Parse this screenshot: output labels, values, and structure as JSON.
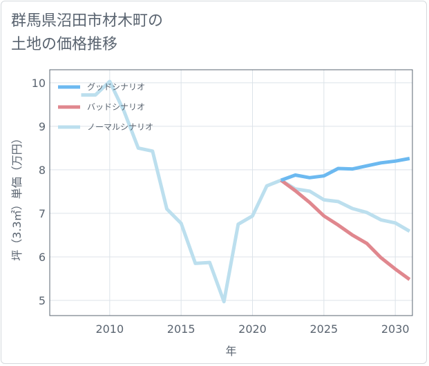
{
  "title": "群馬県沼田市材木町の\n土地の価格推移",
  "chart_data": {
    "type": "line",
    "xlabel": "年",
    "ylabel": "坪（3.3㎡）単価（万円）",
    "xlim": [
      2005.8,
      2031.2
    ],
    "ylim": [
      4.65,
      10.3
    ],
    "xticks": [
      2010,
      2015,
      2020,
      2025,
      2030
    ],
    "yticks": [
      5,
      6,
      7,
      8,
      9,
      10
    ],
    "grid": true,
    "legend_position": "top-left",
    "series": [
      {
        "name": "グッドシナリオ",
        "color": "#6cb9f0",
        "x": [
          2022,
          2023,
          2024,
          2025,
          2026,
          2027,
          2028,
          2029,
          2030,
          2031
        ],
        "y": [
          7.76,
          7.88,
          7.82,
          7.86,
          8.03,
          8.02,
          8.09,
          8.16,
          8.2,
          8.26
        ]
      },
      {
        "name": "バッドシナリオ",
        "color": "#e0878e",
        "x": [
          2022,
          2023,
          2024,
          2025,
          2026,
          2027,
          2028,
          2029,
          2030,
          2031
        ],
        "y": [
          7.76,
          7.52,
          7.25,
          6.94,
          6.73,
          6.5,
          6.31,
          5.98,
          5.72,
          5.48
        ]
      },
      {
        "name": "ノーマルシナリオ",
        "color": "#bcdfee",
        "x": [
          2008,
          2009,
          2010,
          2011,
          2012,
          2013,
          2014,
          2015,
          2016,
          2017,
          2018,
          2019,
          2020,
          2021,
          2022,
          2023,
          2024,
          2025,
          2026,
          2027,
          2028,
          2029,
          2030,
          2031
        ],
        "y": [
          9.72,
          9.72,
          10.03,
          9.35,
          8.5,
          8.43,
          7.1,
          6.77,
          5.85,
          5.87,
          4.97,
          6.75,
          6.94,
          7.63,
          7.76,
          7.56,
          7.51,
          7.31,
          7.27,
          7.11,
          7.02,
          6.85,
          6.78,
          6.59
        ]
      }
    ]
  }
}
